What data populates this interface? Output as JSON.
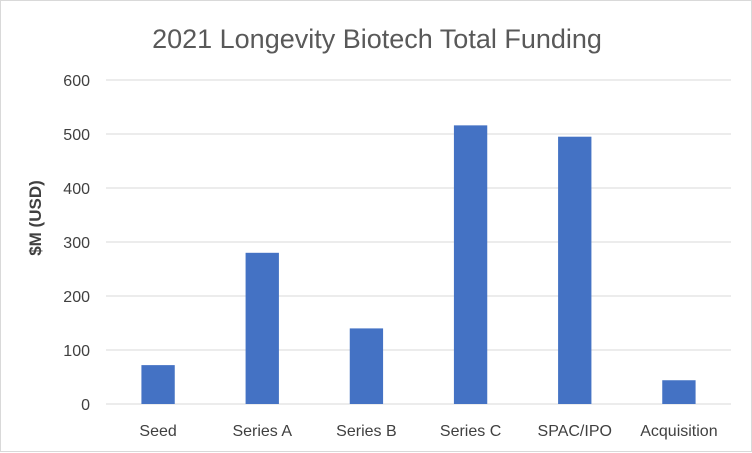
{
  "chart_data": {
    "type": "bar",
    "title": "2021 Longevity Biotech Total Funding",
    "xlabel": "",
    "ylabel": "$M (USD)",
    "categories": [
      "Seed",
      "Series A",
      "Series B",
      "Series C",
      "SPAC/IPO",
      "Acquisition"
    ],
    "values": [
      72,
      280,
      140,
      516,
      495,
      44
    ],
    "ylim": [
      0,
      600
    ],
    "yticks": [
      0,
      100,
      200,
      300,
      400,
      500,
      600
    ],
    "grid": true,
    "legend": "none",
    "bar_color": "#4472C4"
  }
}
